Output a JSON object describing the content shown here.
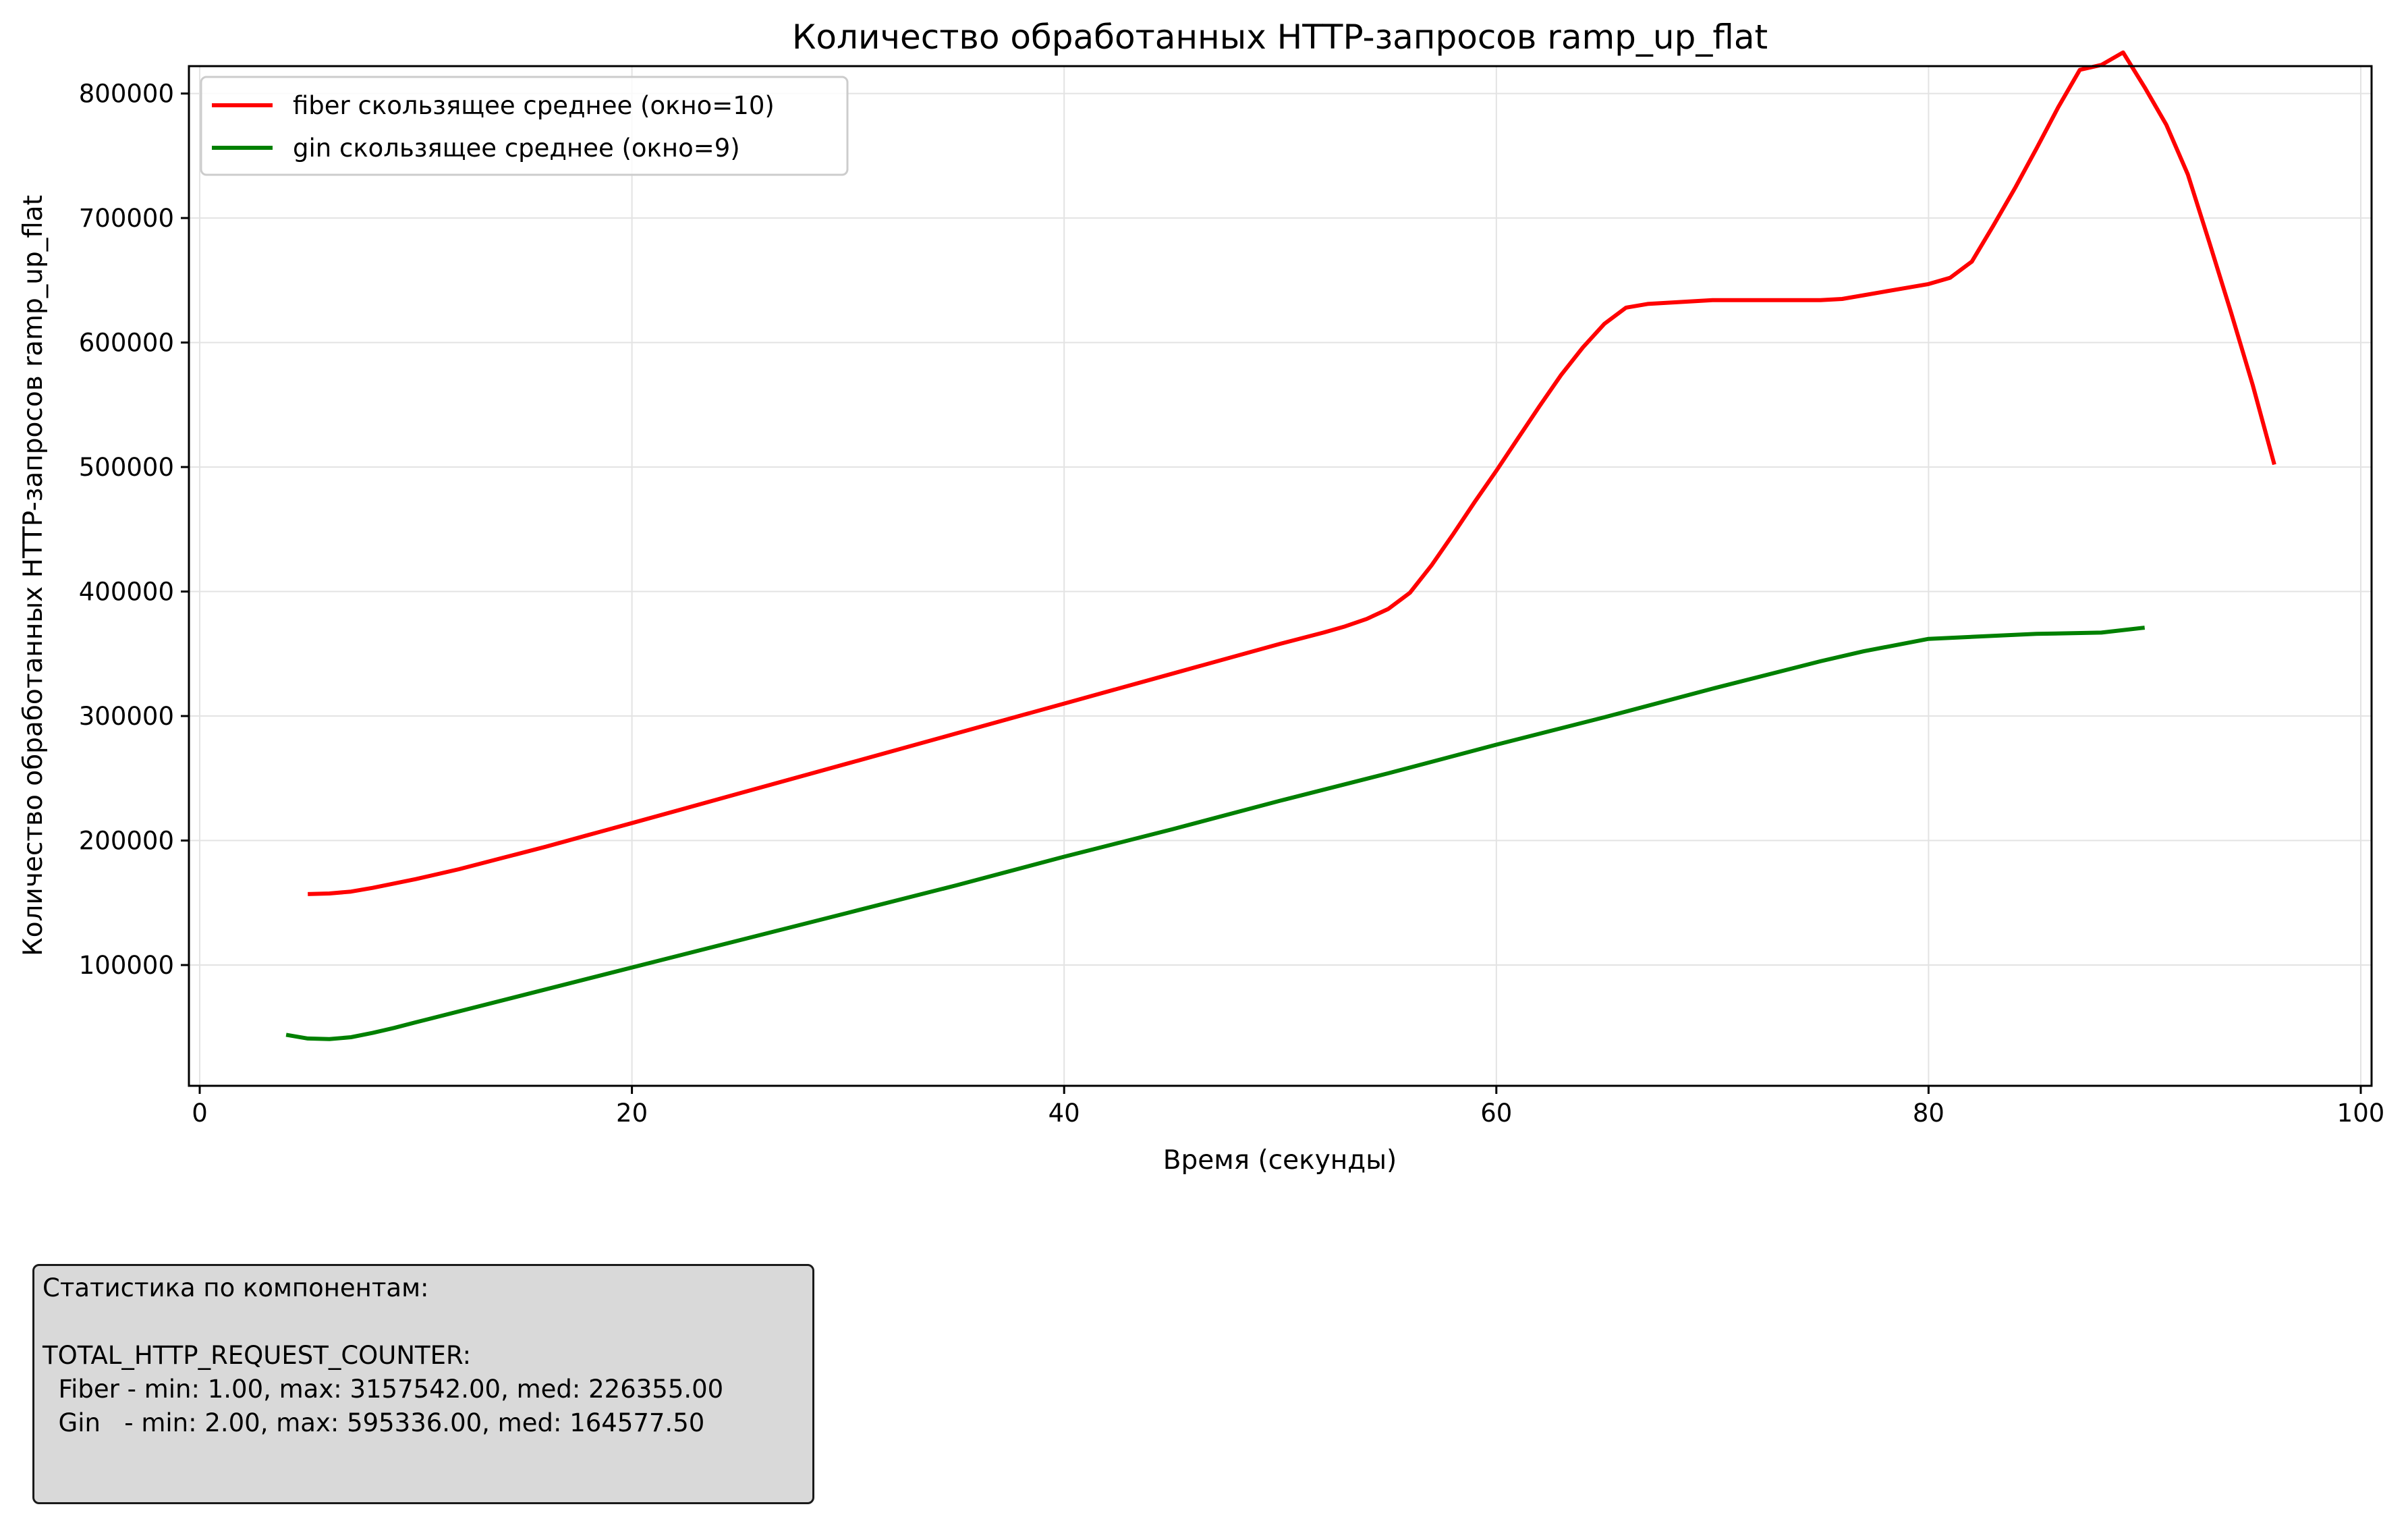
{
  "chart_data": {
    "type": "line",
    "title": "Количество обработанных HTTP-запросов ramp_up_flat",
    "xlabel": "Время (секунды)",
    "ylabel": "Количество обработанных HTTP-запросов ramp_up_flat",
    "xlim": [
      -0.5,
      100.5
    ],
    "ylim": [
      3000,
      822000
    ],
    "xticks": [
      0,
      20,
      40,
      60,
      80,
      100
    ],
    "yticks": [
      100000,
      200000,
      300000,
      400000,
      500000,
      600000,
      700000,
      800000
    ],
    "grid": true,
    "legend_position": "top-left",
    "series": [
      {
        "name": "fiber скользящее среднее (окно=10)",
        "color": "#ff0000",
        "x": [
          5,
          6,
          7,
          8,
          9,
          10,
          12,
          14,
          16,
          18,
          20,
          25,
          30,
          35,
          40,
          45,
          50,
          52,
          53,
          54,
          55,
          56,
          57,
          58,
          59,
          60,
          61,
          62,
          63,
          64,
          65,
          66,
          67,
          68,
          70,
          72,
          75,
          76,
          77,
          78,
          79,
          80,
          81,
          82,
          83,
          84,
          85,
          86,
          87,
          88,
          89,
          90,
          91,
          92,
          93,
          94,
          95,
          96
        ],
        "y": [
          157000,
          157500,
          159000,
          162000,
          165500,
          169000,
          177000,
          186000,
          195000,
          204500,
          214000,
          238000,
          262000,
          286000,
          310000,
          334000,
          358000,
          367000,
          372000,
          378000,
          386000,
          399000,
          421000,
          446000,
          472000,
          497000,
          523000,
          549000,
          574000,
          596000,
          615000,
          628000,
          631000,
          632000,
          634000,
          634000,
          634000,
          635000,
          638000,
          641000,
          644000,
          647000,
          652000,
          665000,
          694000,
          724000,
          756000,
          789000,
          819000,
          823000,
          833000,
          805000,
          775000,
          735000,
          680000,
          624000,
          566000,
          502000
        ]
      },
      {
        "name": "gin скользящее среднее (окно=9)",
        "color": "#008000",
        "x": [
          4,
          5,
          6,
          7,
          8,
          9,
          10,
          15,
          20,
          25,
          30,
          35,
          40,
          45,
          50,
          55,
          60,
          65,
          70,
          75,
          77,
          80,
          85,
          88,
          90
        ],
        "y": [
          44000,
          41000,
          40500,
          42000,
          45500,
          49500,
          54000,
          76000,
          98000,
          120000,
          142000,
          164000,
          187000,
          209000,
          232000,
          254000,
          277000,
          299000,
          322000,
          344000,
          352000,
          362000,
          366000,
          367000,
          371000
        ]
      }
    ]
  },
  "stats": {
    "heading": "Статистика по компонентам:",
    "metric": "TOTAL_HTTP_REQUEST_COUNTER:",
    "fiber_line": "  Fiber - min: 1.00, max: 3157542.00, med: 226355.00",
    "gin_line": "  Gin   - min: 2.00, max: 595336.00, med: 164577.50"
  }
}
